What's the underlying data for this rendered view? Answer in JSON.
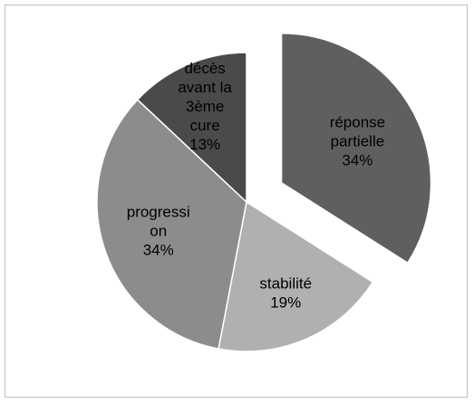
{
  "chart_data": {
    "type": "pie",
    "title": "",
    "slices": [
      {
        "lines": [
          "réponse",
          "partielle",
          "34%"
        ],
        "value": 34,
        "color": "#5f5f5f",
        "exploded": true
      },
      {
        "lines": [
          "stabilité",
          "19%"
        ],
        "value": 19,
        "color": "#b0b0b0",
        "exploded": false
      },
      {
        "lines": [
          "progressi",
          "on",
          "34%"
        ],
        "value": 34,
        "color": "#8c8c8c",
        "exploded": false
      },
      {
        "lines": [
          "décès",
          "avant la",
          "3ème",
          "cure",
          "13%"
        ],
        "value": 13,
        "color": "#4a4a4a",
        "exploded": false
      }
    ],
    "legend": "none",
    "grid": false
  }
}
